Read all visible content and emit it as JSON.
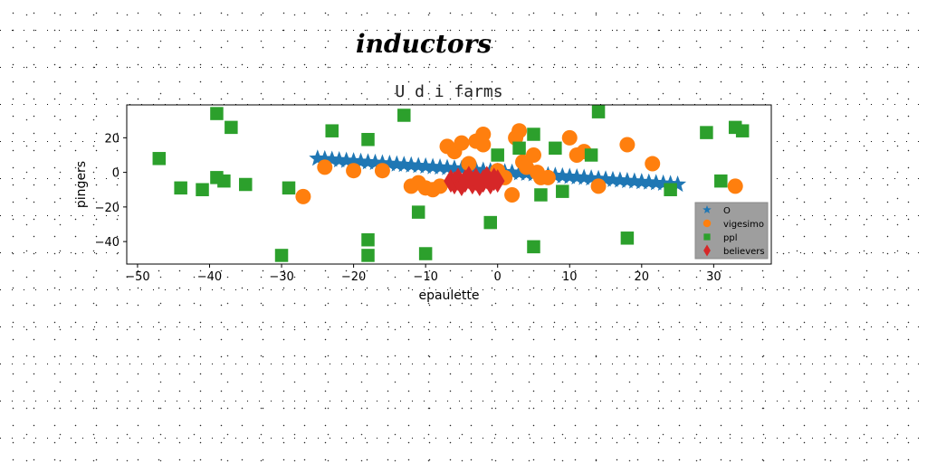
{
  "figure": {
    "suptitle": "inductors"
  },
  "chart_data": {
    "type": "scatter",
    "title": "U d i farms",
    "xlabel": "epaulette",
    "ylabel": "pingers",
    "xlim": [
      -51.5,
      38
    ],
    "ylim": [
      -53,
      39
    ],
    "xticks": [
      -50,
      -40,
      -30,
      -20,
      -10,
      0,
      10,
      20,
      30
    ],
    "yticks": [
      -40,
      -20,
      0,
      20
    ],
    "legend_position": "lower-right",
    "series": [
      {
        "name": "O",
        "marker": "star",
        "color": "#1f77b4",
        "x": [
          -25,
          -24,
          -23,
          -22,
          -21,
          -20,
          -19,
          -18,
          -17,
          -16,
          -15,
          -14,
          -13,
          -12,
          -11,
          -10,
          -9,
          -8,
          -7,
          -6,
          -5,
          -4,
          -3,
          -2,
          -1,
          0,
          1,
          2,
          3,
          4,
          5,
          6,
          7,
          8,
          9,
          10,
          11,
          12,
          13,
          14,
          15,
          16,
          17,
          18,
          19,
          20,
          21,
          22,
          23,
          24,
          25
        ],
        "y": [
          8,
          7.7,
          7.4,
          7.1,
          6.8,
          6.5,
          6.2,
          5.9,
          5.6,
          5.3,
          5,
          4.7,
          4.4,
          4.1,
          3.8,
          3.5,
          3.2,
          2.9,
          2.6,
          2.3,
          2,
          1.7,
          1.4,
          1.1,
          0.8,
          0.5,
          0.2,
          -0.1,
          -0.4,
          -0.7,
          -1,
          -1.3,
          -1.6,
          -1.9,
          -2.2,
          -2.5,
          -2.8,
          -3.1,
          -3.4,
          -3.7,
          -4,
          -4.3,
          -4.6,
          -4.9,
          -5.2,
          -5.5,
          -5.8,
          -6.1,
          -6.4,
          -6.7,
          -7
        ]
      },
      {
        "name": "vigesimo",
        "marker": "circle",
        "color": "#ff7f0e",
        "x": [
          -27,
          -24,
          -20,
          -16,
          -12,
          -11,
          -10,
          -9,
          -8,
          -7,
          -6,
          -5,
          -4,
          -3,
          -2,
          -2,
          0,
          1,
          2,
          2.5,
          3,
          3.5,
          4,
          5,
          5.5,
          6,
          7,
          10,
          11,
          12,
          14,
          18,
          21.5,
          33
        ],
        "y": [
          -14,
          3,
          1,
          1,
          -8,
          -6,
          -9,
          -10,
          -8,
          15,
          12,
          17,
          5,
          18,
          22,
          16,
          1,
          -3,
          -13,
          20,
          24,
          6,
          3,
          10,
          0,
          -3,
          -3,
          20,
          10,
          12,
          -8,
          16,
          5,
          -8
        ]
      },
      {
        "name": "ppl",
        "marker": "square",
        "color": "#2ca02c",
        "x": [
          -47,
          -44,
          -41,
          -39,
          -39,
          -38,
          -37,
          -35,
          -30,
          -29,
          -23,
          -18,
          -18,
          -18,
          -13,
          -11,
          -10,
          -1,
          0,
          3,
          5,
          5,
          6,
          8,
          9,
          13,
          14,
          18,
          24,
          29,
          31,
          33,
          34
        ],
        "y": [
          8,
          -9,
          -10,
          34,
          -3,
          -5,
          26,
          -7,
          -48,
          -9,
          24,
          -39,
          -48,
          19,
          33,
          -23,
          -47,
          -29,
          10,
          14,
          22,
          -43,
          -13,
          14,
          -11,
          10,
          35,
          -38,
          -10,
          23,
          -5,
          26,
          24
        ]
      },
      {
        "name": "believers",
        "marker": "diamond",
        "color": "#d62728",
        "x": [
          -6.5,
          -6,
          -5.5,
          -5,
          -4.5,
          -4,
          -3.5,
          -3,
          -2.5,
          -2,
          -1.5,
          -1,
          -0.5,
          0
        ],
        "y": [
          -5,
          -6,
          -4,
          -7,
          -5,
          -3,
          -6,
          -4,
          -7,
          -5,
          -3,
          -6,
          -4,
          -5
        ]
      }
    ]
  }
}
